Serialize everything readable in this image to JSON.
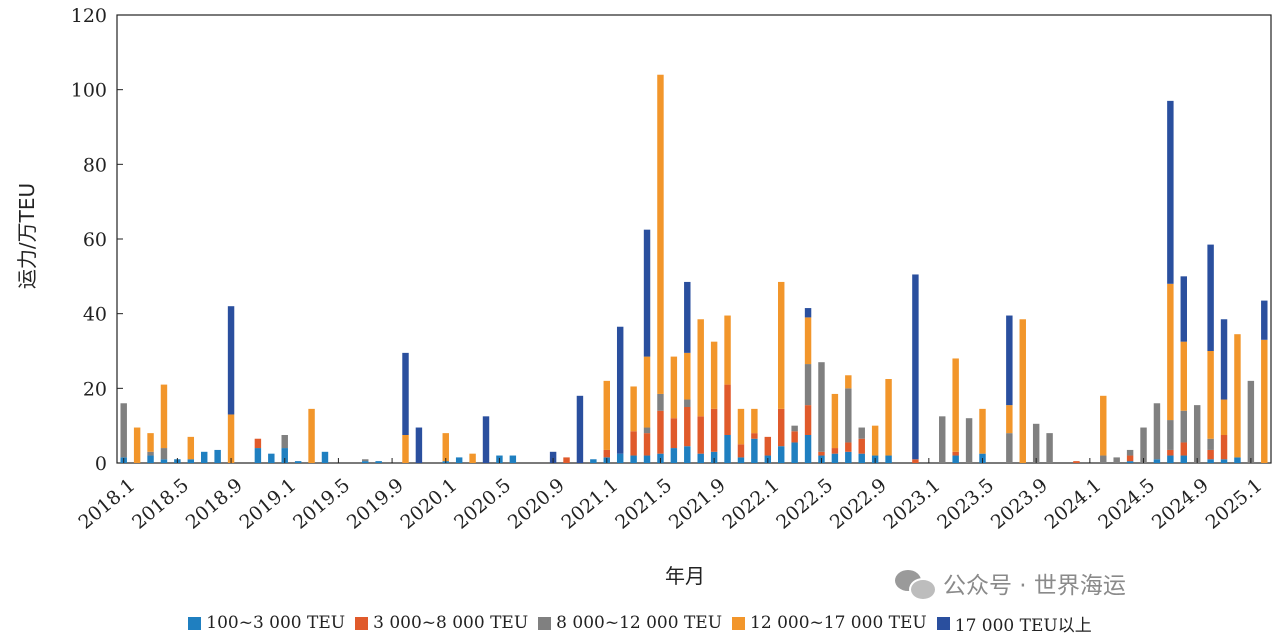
{
  "chart_data": {
    "type": "bar",
    "stacked": true,
    "ylabel": "运力/万TEU",
    "xlabel": "年月",
    "ylim": [
      0,
      120
    ],
    "yticks": [
      0,
      20,
      40,
      60,
      80,
      100,
      120
    ],
    "grid": false,
    "legend_position": "bottom",
    "x_tick_labels": [
      "2018.1",
      "2018.5",
      "2018.9",
      "2019.1",
      "2019.5",
      "2019.9",
      "2020.1",
      "2020.5",
      "2020.9",
      "2021.1",
      "2021.5",
      "2021.9",
      "2022.1",
      "2022.5",
      "2022.9",
      "2023.1",
      "2023.5",
      "2023.9",
      "2024.1",
      "2024.5",
      "2024.9",
      "2025.1"
    ],
    "categories": [
      "2018.1",
      "2018.2",
      "2018.3",
      "2018.4",
      "2018.5",
      "2018.6",
      "2018.7",
      "2018.8",
      "2018.9",
      "2018.10",
      "2018.11",
      "2018.12",
      "2019.1",
      "2019.2",
      "2019.3",
      "2019.4",
      "2019.5",
      "2019.6",
      "2019.7",
      "2019.8",
      "2019.9",
      "2019.10",
      "2019.11",
      "2019.12",
      "2020.1",
      "2020.2",
      "2020.3",
      "2020.4",
      "2020.5",
      "2020.6",
      "2020.7",
      "2020.8",
      "2020.9",
      "2020.10",
      "2020.11",
      "2020.12",
      "2021.1",
      "2021.2",
      "2021.3",
      "2021.4",
      "2021.5",
      "2021.6",
      "2021.7",
      "2021.8",
      "2021.9",
      "2021.10",
      "2021.11",
      "2021.12",
      "2022.1",
      "2022.2",
      "2022.3",
      "2022.4",
      "2022.5",
      "2022.6",
      "2022.7",
      "2022.8",
      "2022.9",
      "2022.10",
      "2022.11",
      "2022.12",
      "2023.1",
      "2023.2",
      "2023.3",
      "2023.4",
      "2023.5",
      "2023.6",
      "2023.7",
      "2023.8",
      "2023.9",
      "2023.10",
      "2023.11",
      "2023.12",
      "2024.1",
      "2024.2",
      "2024.3",
      "2024.4",
      "2024.5",
      "2024.6",
      "2024.7",
      "2024.8",
      "2024.9",
      "2024.10",
      "2024.11",
      "2024.12",
      "2025.1",
      "2025.2"
    ],
    "series": [
      {
        "name": "100~3 000 TEU",
        "color": "#1f7fc0",
        "values": [
          1.5,
          0,
          2,
          1,
          1,
          1,
          3,
          3.5,
          0,
          0,
          4,
          2.5,
          4,
          0.5,
          0,
          3,
          0,
          0,
          0.5,
          0.5,
          0,
          0,
          0,
          0,
          0.5,
          1.5,
          0,
          0,
          2,
          2,
          0,
          0,
          0,
          0,
          0,
          1,
          1.5,
          2.5,
          2,
          2,
          2.5,
          4,
          4.5,
          2.5,
          3,
          7.5,
          1.5,
          6.5,
          2,
          4.5,
          5.5,
          7.5,
          2,
          2.5,
          3,
          2.5,
          2,
          2,
          0,
          0,
          0,
          0,
          2,
          0,
          2.5,
          0,
          0,
          0,
          0,
          0,
          0,
          0,
          0,
          0,
          0,
          0.5,
          0,
          1,
          2,
          2,
          0,
          1,
          1,
          1.5,
          0,
          0
        ]
      },
      {
        "name": "3 000~8 000 TEU",
        "color": "#e05a2b",
        "values": [
          0,
          0,
          0,
          0,
          0,
          0,
          0,
          0,
          0,
          0,
          2.5,
          0,
          0,
          0,
          0,
          0,
          0,
          0,
          0,
          0,
          0,
          0,
          0,
          0,
          0,
          0,
          0,
          0,
          0,
          0,
          0,
          0,
          0,
          1.5,
          0,
          0,
          2,
          0,
          6.5,
          6,
          11.5,
          8,
          10.5,
          10,
          11.5,
          13.5,
          3.5,
          1.5,
          5,
          10,
          3,
          8,
          1,
          1.5,
          2.5,
          4,
          0,
          0,
          0,
          1,
          0,
          0,
          1,
          0,
          0,
          0,
          0,
          0,
          0,
          0,
          0,
          0.5,
          0,
          0,
          0,
          1.5,
          0,
          0,
          1.5,
          3.5,
          0,
          2.5,
          6.5,
          0,
          0,
          0
        ]
      },
      {
        "name": "8 000~12 000 TEU",
        "color": "#808080",
        "values": [
          14.5,
          0,
          1,
          3,
          0,
          0,
          0,
          0,
          0,
          0,
          0,
          0,
          3.5,
          0,
          0,
          0,
          0,
          0,
          0.5,
          0,
          0,
          0,
          0,
          0,
          0,
          0,
          0,
          0,
          0,
          0,
          0,
          0,
          0,
          0,
          0,
          0,
          0,
          0,
          0,
          1.5,
          4.5,
          0,
          2,
          0,
          0,
          0,
          0,
          0,
          0,
          0,
          1.5,
          11,
          24,
          0,
          14.5,
          3,
          0,
          0,
          0,
          0,
          0,
          12.5,
          0,
          12,
          0,
          0,
          8,
          0,
          10.5,
          8,
          0,
          0,
          0,
          2,
          1.5,
          1.5,
          9.5,
          15,
          8,
          8.5,
          15.5,
          3,
          0,
          0,
          22,
          0
        ]
      },
      {
        "name": "12 000~17 000 TEU",
        "color": "#f2962b",
        "values": [
          0,
          9.5,
          5,
          17,
          0,
          6,
          0,
          0,
          13,
          0,
          0,
          0,
          0,
          0,
          14.5,
          0,
          0,
          0,
          0,
          0,
          0,
          7.5,
          0,
          0,
          7.5,
          0,
          2.5,
          0,
          0,
          0,
          0,
          0,
          0,
          0,
          0,
          0,
          18.5,
          0,
          12,
          19,
          85.5,
          16.5,
          12.5,
          26,
          18,
          18.5,
          9.5,
          6.5,
          0,
          34,
          0,
          12.5,
          0,
          14.5,
          3.5,
          0,
          8,
          20.5,
          0,
          0,
          0,
          0,
          25,
          0,
          12,
          0,
          7.5,
          38.5,
          0,
          0,
          0,
          0,
          0,
          16,
          0,
          0,
          0,
          0,
          36.5,
          18.5,
          0,
          23.5,
          9.5,
          33,
          0,
          33
        ]
      },
      {
        "name": "17 000 TEU以上",
        "color": "#2a4f9e",
        "values": [
          0,
          0,
          0,
          0,
          0,
          0,
          0,
          0,
          29,
          0,
          0,
          0,
          0,
          0,
          0,
          0,
          0,
          0,
          0,
          0,
          0,
          22,
          9.5,
          0,
          0,
          0,
          0,
          12.5,
          0,
          0,
          0,
          0,
          3,
          0,
          18,
          0,
          0,
          34,
          0,
          34,
          0,
          0,
          19,
          0,
          0,
          0,
          0,
          0,
          0,
          0,
          0,
          2.5,
          0,
          0,
          0,
          0,
          0,
          0,
          0,
          49.5,
          0,
          0,
          0,
          0,
          0,
          0,
          24,
          0,
          0,
          0,
          0,
          0,
          0,
          0,
          0,
          0,
          0,
          0,
          49,
          17.5,
          0,
          28.5,
          21.5,
          0,
          0,
          10.5
        ]
      }
    ]
  },
  "watermark": {
    "text": "公众号 · 世界海运",
    "icon": "wechat-icon"
  }
}
